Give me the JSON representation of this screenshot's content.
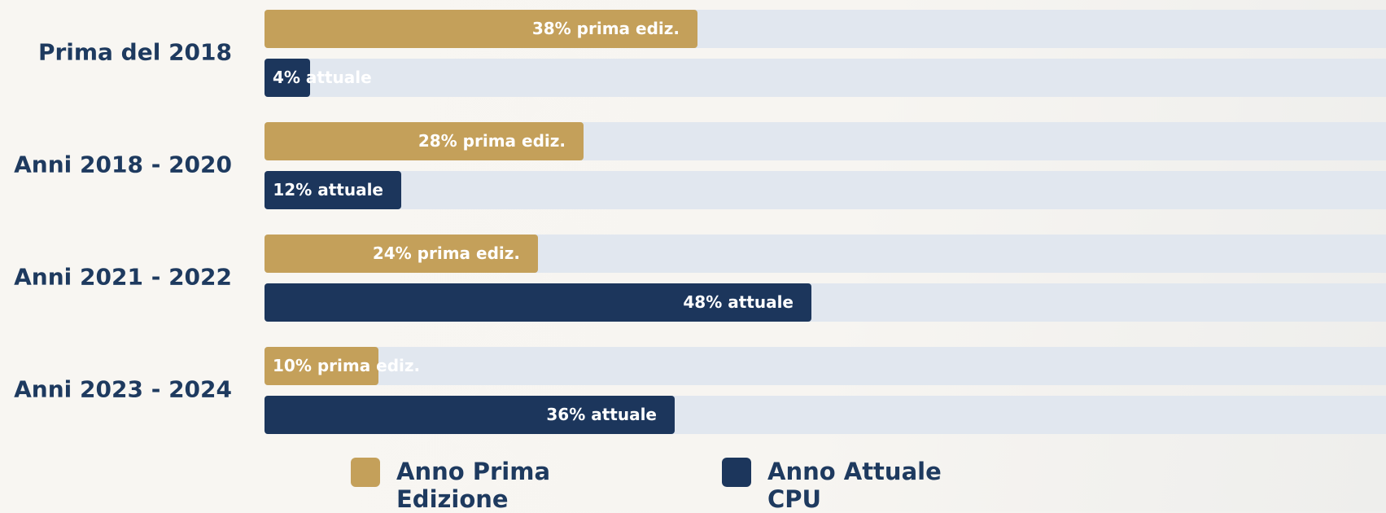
{
  "chart_data": {
    "type": "bar",
    "orientation": "horizontal",
    "categories": [
      "Prima del 2018",
      "Anni 2018 - 2020",
      "Anni 2021 - 2022",
      "Anni 2023 - 2024"
    ],
    "xlim": [
      0,
      100
    ],
    "track_color": "#e1e7ef",
    "series": [
      {
        "name": "Anno Prima Edizione",
        "color": "#c4a05a",
        "values": [
          38,
          28,
          24,
          10
        ],
        "value_labels": [
          "38% prima ediz.",
          "28% prima ediz.",
          "24% prima ediz.",
          "10% prima ediz."
        ]
      },
      {
        "name": "Anno Attuale CPU",
        "color": "#1c365c",
        "values": [
          4,
          12,
          48,
          36
        ],
        "value_labels": [
          "4% attuale",
          "12% attuale",
          "48% attuale",
          "36% attuale"
        ]
      }
    ]
  }
}
